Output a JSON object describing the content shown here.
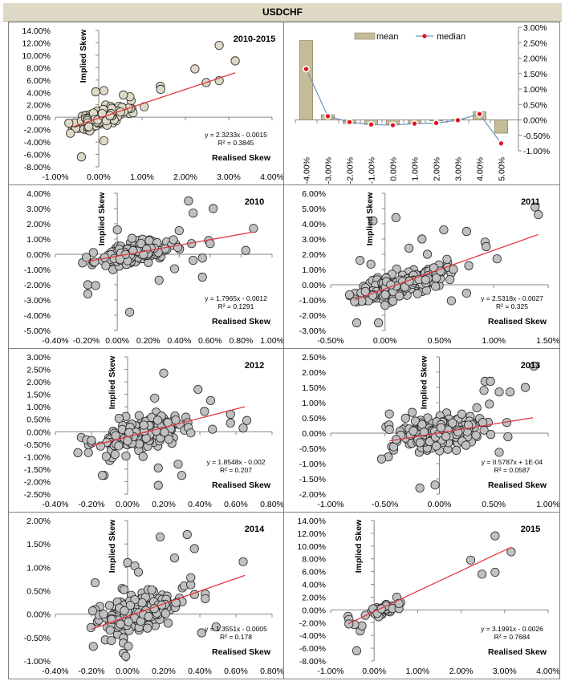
{
  "header": {
    "title": "USDCHF"
  },
  "chart_data": [
    {
      "id": "all",
      "type": "scatter",
      "title": "2010-2015",
      "xlabel": "Realised Skew",
      "ylabel": "Implied Skew",
      "xlim": [
        -0.01,
        0.04
      ],
      "ylim": [
        -0.08,
        0.14
      ],
      "xticks": [
        -0.01,
        0.0,
        0.01,
        0.02,
        0.03,
        0.04
      ],
      "yticks": [
        -0.08,
        -0.06,
        -0.04,
        -0.02,
        0.0,
        0.02,
        0.04,
        0.06,
        0.08,
        0.1,
        0.12,
        0.14
      ],
      "tick_format_decimals": 2,
      "marker_fill": "#ddd9c4",
      "trendline": {
        "slope": 2.3233,
        "intercept": -0.0015,
        "x_range": [
          -0.006,
          0.0315
        ],
        "color": "#e0393e"
      },
      "equation": "y = 2.3233x - 0.0015",
      "r2": "R² = 0.3845",
      "outliers": [
        [
          0.0278,
          0.116
        ],
        [
          0.0315,
          0.091
        ],
        [
          0.0222,
          0.078
        ],
        [
          0.0248,
          0.056
        ],
        [
          0.0278,
          0.059
        ],
        [
          0.0142,
          0.05
        ],
        [
          0.0143,
          0.045
        ],
        [
          -0.0007,
          0.041
        ],
        [
          0.0012,
          0.043
        ],
        [
          -0.004,
          -0.064
        ],
        [
          0.0012,
          -0.038
        ],
        [
          0.0105,
          0.017
        ],
        [
          0.0072,
          0.033
        ],
        [
          0.0057,
          0.036
        ]
      ],
      "cloud": {
        "n": 220,
        "xmean": 0.001,
        "xsd": 0.0028,
        "slope": 2.0,
        "noise": 0.011,
        "seed": 11
      }
    },
    {
      "id": "bars",
      "type": "bar",
      "categories": [
        "-4.00%",
        "-3.00%",
        "-2.00%",
        "-1.00%",
        "0.00%",
        "1.00%",
        "2.00%",
        "3.00%",
        "4.00%",
        "5.00%"
      ],
      "series": [
        {
          "name": "mean",
          "type": "bar",
          "color": "#c4bc96",
          "values": [
            0.0257,
            0.0017,
            -0.0012,
            -0.0015,
            -0.0014,
            -0.001,
            -0.0003,
            0.0002,
            0.0027,
            -0.0043
          ]
        },
        {
          "name": "median",
          "type": "line",
          "color": "#6f93c0",
          "marker_color": "#e3101a",
          "values": [
            0.0165,
            0.0012,
            -0.0007,
            -0.0015,
            -0.0017,
            -0.0012,
            -0.001,
            -0.0001,
            0.0019,
            -0.0076
          ]
        }
      ],
      "ylim": [
        -0.01,
        0.03
      ],
      "yticks": [
        -0.01,
        -0.005,
        0.0,
        0.005,
        0.01,
        0.015,
        0.02,
        0.025,
        0.03
      ],
      "y_axis_side": "right",
      "legend": "top-center"
    },
    {
      "id": "y2010",
      "type": "scatter",
      "title": "2010",
      "xlabel": "Realised Skew",
      "ylabel": "Implied Skew",
      "xlim": [
        -0.004,
        0.01
      ],
      "ylim": [
        -0.05,
        0.04
      ],
      "xticks": [
        -0.004,
        -0.002,
        0.0,
        0.002,
        0.004,
        0.006,
        0.008,
        0.01
      ],
      "yticks": [
        -0.05,
        -0.04,
        -0.03,
        -0.02,
        -0.01,
        0.0,
        0.01,
        0.02,
        0.03,
        0.04
      ],
      "tick_format_decimals": 2,
      "marker_fill": "#c0c0c0",
      "trendline": {
        "slope": 1.7965,
        "intercept": -0.0012,
        "x_range": [
          -0.0019,
          0.0088
        ],
        "color": "#e0393e"
      },
      "equation": "y = 1.7965x - 0.0012",
      "r2": "R² = 0.1291",
      "outliers": [
        [
          0.0046,
          0.035
        ],
        [
          0.0062,
          0.03
        ],
        [
          0.0049,
          0.027
        ],
        [
          0.0088,
          0.017
        ],
        [
          0.0083,
          0.0025
        ],
        [
          0.0059,
          0.009
        ],
        [
          0.006,
          0.007
        ],
        [
          0.0048,
          0.007
        ],
        [
          0.0055,
          -0.015
        ],
        [
          0.0049,
          -0.004
        ],
        [
          0.0055,
          -0.0025
        ],
        [
          0.0008,
          -0.038
        ],
        [
          -0.0019,
          -0.026
        ],
        [
          -0.0019,
          -0.02
        ],
        [
          -0.0014,
          -0.0205
        ],
        [
          0.0027,
          -0.017
        ],
        [
          0.0037,
          -0.0095
        ],
        [
          0.004,
          0.0155
        ],
        [
          -0.002,
          -0.002
        ],
        [
          0.0,
          0.016
        ]
      ],
      "cloud": {
        "n": 150,
        "xmean": 0.001,
        "xsd": 0.0012,
        "slope": 1.6,
        "noise": 0.0055,
        "seed": 23
      }
    },
    {
      "id": "y2011",
      "type": "scatter",
      "title": "2011",
      "xlabel": "Realised Skew",
      "ylabel": "Implied Skew",
      "xlim": [
        -0.005,
        0.015
      ],
      "ylim": [
        -0.03,
        0.06
      ],
      "xticks": [
        -0.005,
        0.0,
        0.005,
        0.01,
        0.015
      ],
      "yticks": [
        -0.03,
        -0.02,
        -0.01,
        0.0,
        0.01,
        0.02,
        0.03,
        0.04,
        0.05,
        0.06
      ],
      "tick_format_decimals": 2,
      "marker_fill": "#c0c0c0",
      "trendline": {
        "slope": 2.5318,
        "intercept": -0.0027,
        "x_range": [
          -0.0028,
          0.0141
        ],
        "color": "#e0393e"
      },
      "equation": "y = 2.5318x - 0.0027",
      "r2": "R² = 0.325",
      "outliers": [
        [
          0.0138,
          0.051
        ],
        [
          0.0141,
          0.046
        ],
        [
          -0.0011,
          0.042
        ],
        [
          0.001,
          0.044
        ],
        [
          0.0054,
          0.036
        ],
        [
          0.0075,
          0.035
        ],
        [
          0.0034,
          0.03
        ],
        [
          0.0092,
          0.028
        ],
        [
          0.0093,
          0.025
        ],
        [
          0.0103,
          0.017
        ],
        [
          0.0077,
          0.0125
        ],
        [
          0.0075,
          -0.0055
        ],
        [
          0.0061,
          -0.0105
        ],
        [
          0.0022,
          0.024
        ],
        [
          0.0039,
          0.02
        ],
        [
          -0.0023,
          0.016
        ],
        [
          -0.0013,
          0.0135
        ],
        [
          -0.0028,
          -0.011
        ],
        [
          -0.0026,
          -0.025
        ],
        [
          -0.0006,
          -0.025
        ]
      ],
      "cloud": {
        "n": 190,
        "xmean": 0.0015,
        "xsd": 0.002,
        "slope": 2.0,
        "noise": 0.0075,
        "seed": 37
      }
    },
    {
      "id": "y2012",
      "type": "scatter",
      "title": "2012",
      "xlabel": "Realised Skew",
      "ylabel": "Implied Skew",
      "xlim": [
        -0.004,
        0.008
      ],
      "ylim": [
        -0.025,
        0.03
      ],
      "xticks": [
        -0.004,
        -0.002,
        0.0,
        0.002,
        0.004,
        0.006,
        0.008
      ],
      "yticks": [
        -0.025,
        -0.02,
        -0.015,
        -0.01,
        -0.005,
        0.0,
        0.005,
        0.01,
        0.015,
        0.02,
        0.025,
        0.03
      ],
      "tick_format_decimals": 2,
      "marker_fill": "#c0c0c0",
      "trendline": {
        "slope": 1.8548,
        "intercept": -0.002,
        "x_range": [
          -0.002,
          0.0065
        ],
        "color": "#e0393e"
      },
      "equation": "y = 1.8548x - 0.002",
      "r2": "R² = 0.207",
      "outliers": [
        [
          0.002,
          0.0235
        ],
        [
          0.0039,
          0.017
        ],
        [
          0.0046,
          0.0125
        ],
        [
          0.0015,
          0.0135
        ],
        [
          0.0057,
          0.007
        ],
        [
          0.0066,
          0.0045
        ],
        [
          0.0064,
          0.0015
        ],
        [
          0.0057,
          0.0035
        ],
        [
          0.0047,
          0.001
        ],
        [
          0.0017,
          -0.0215
        ],
        [
          0.003,
          -0.0175
        ],
        [
          0.0028,
          -0.013
        ],
        [
          0.0017,
          -0.0145
        ],
        [
          -0.0013,
          -0.0175
        ],
        [
          -0.0014,
          -0.0175
        ],
        [
          0.0035,
          -0.0005
        ],
        [
          -0.002,
          -0.0035
        ]
      ],
      "cloud": {
        "n": 200,
        "xmean": 0.0007,
        "xsd": 0.0013,
        "slope": 1.7,
        "noise": 0.0055,
        "seed": 53
      }
    },
    {
      "id": "y2013",
      "type": "scatter",
      "title": "2013",
      "xlabel": "Realised Skew",
      "ylabel": "Implied Skew",
      "xlim": [
        -0.01,
        0.01
      ],
      "ylim": [
        -0.02,
        0.025
      ],
      "xticks": [
        -0.01,
        -0.005,
        0.0,
        0.005,
        0.01
      ],
      "yticks": [
        -0.02,
        -0.015,
        -0.01,
        -0.005,
        0.0,
        0.005,
        0.01,
        0.015,
        0.02,
        0.025
      ],
      "tick_format_decimals": 2,
      "marker_fill": "#c0c0c0",
      "trendline": {
        "slope": 0.5787,
        "intercept": 0.0001,
        "x_range": [
          -0.0046,
          0.0086
        ],
        "color": "#e0393e"
      },
      "equation": "y = 0.5787x + 1E-04",
      "r2": "R² = 0.0587",
      "outliers": [
        [
          0.0087,
          0.022
        ],
        [
          0.0079,
          0.015
        ],
        [
          0.0042,
          0.017
        ],
        [
          0.0047,
          0.017
        ],
        [
          0.0041,
          0.014
        ],
        [
          0.0055,
          0.0135
        ],
        [
          0.0065,
          0.0135
        ],
        [
          0.0046,
          0.0095
        ],
        [
          0.0062,
          0.0035
        ],
        [
          0.0063,
          -0.0012
        ],
        [
          0.0055,
          -0.0063
        ],
        [
          -0.0046,
          0.0063
        ],
        [
          -0.0046,
          0.0012
        ],
        [
          -0.0018,
          -0.018
        ],
        [
          -0.0004,
          -0.017
        ],
        [
          -0.0025,
          0.0068
        ]
      ],
      "cloud": {
        "n": 260,
        "xmean": 0.0,
        "xsd": 0.0022,
        "slope": 0.5,
        "noise": 0.0045,
        "seed": 71
      }
    },
    {
      "id": "y2014",
      "type": "scatter",
      "title": "2014",
      "xlabel": "Realised Skew",
      "ylabel": "Implied Skew",
      "xlim": [
        -0.004,
        0.008
      ],
      "ylim": [
        -0.01,
        0.02
      ],
      "xticks": [
        -0.004,
        -0.002,
        0.0,
        0.002,
        0.004,
        0.006,
        0.008
      ],
      "yticks": [
        -0.01,
        -0.005,
        0.0,
        0.005,
        0.01,
        0.015,
        0.02
      ],
      "tick_format_decimals": 2,
      "marker_fill": "#c0c0c0",
      "trendline": {
        "slope": 1.3551,
        "intercept": -0.0005,
        "x_range": [
          -0.002,
          0.0065
        ],
        "color": "#e0393e"
      },
      "equation": "y = 1.3551x - 0.0005",
      "r2": "R² = 0.178",
      "outliers": [
        [
          0.0033,
          0.017
        ],
        [
          0.0018,
          0.0165
        ],
        [
          0.0037,
          0.014
        ],
        [
          0.0064,
          0.0112
        ],
        [
          0.0026,
          0.012
        ],
        [
          0.0,
          0.011
        ],
        [
          0.0004,
          0.0103
        ],
        [
          0.0006,
          0.009
        ],
        [
          0.0043,
          0.0043
        ],
        [
          0.0043,
          0.0033
        ],
        [
          0.0049,
          -0.0027
        ],
        [
          0.0041,
          -0.004
        ],
        [
          0.0035,
          0.0063
        ],
        [
          0.0035,
          0.0078
        ],
        [
          -0.0018,
          0.0067
        ],
        [
          -0.0019,
          -0.0069
        ],
        [
          -0.0001,
          -0.009
        ]
      ],
      "cloud": {
        "n": 220,
        "xmean": 0.0007,
        "xsd": 0.0011,
        "slope": 1.2,
        "noise": 0.0035,
        "seed": 89
      }
    },
    {
      "id": "y2015",
      "type": "scatter",
      "title": "2015",
      "xlabel": "Realised Skew",
      "ylabel": "Implied Skew",
      "xlim": [
        -0.01,
        0.04
      ],
      "ylim": [
        -0.08,
        0.14
      ],
      "xticks": [
        -0.01,
        0.0,
        0.01,
        0.02,
        0.03,
        0.04
      ],
      "yticks": [
        -0.08,
        -0.06,
        -0.04,
        -0.02,
        0.0,
        0.02,
        0.04,
        0.06,
        0.08,
        0.1,
        0.12,
        0.14
      ],
      "tick_format_decimals": 2,
      "marker_fill": "#c0c0c0",
      "trendline": {
        "slope": 3.1991,
        "intercept": -0.0026,
        "x_range": [
          -0.006,
          0.0315
        ],
        "color": "#e0393e"
      },
      "equation": "y = 3.1991x - 0.0026",
      "r2": "R² = 0.7684",
      "outliers": [
        [
          0.0278,
          0.116
        ],
        [
          0.0315,
          0.091
        ],
        [
          0.0222,
          0.078
        ],
        [
          0.0248,
          0.056
        ],
        [
          0.0278,
          0.059
        ],
        [
          -0.004,
          -0.064
        ],
        [
          -0.0032,
          -0.033
        ],
        [
          -0.0028,
          -0.025
        ],
        [
          -0.0045,
          -0.023
        ],
        [
          -0.006,
          -0.01
        ],
        [
          -0.0058,
          -0.015
        ],
        [
          0.0052,
          0.02
        ],
        [
          0.0057,
          0.002
        ],
        [
          0.0057,
          0.01
        ],
        [
          -0.0058,
          -0.022
        ]
      ],
      "cloud": {
        "n": 60,
        "xmean": 0.0012,
        "xsd": 0.0016,
        "slope": 1.6,
        "noise": 0.0055,
        "seed": 97
      }
    }
  ]
}
